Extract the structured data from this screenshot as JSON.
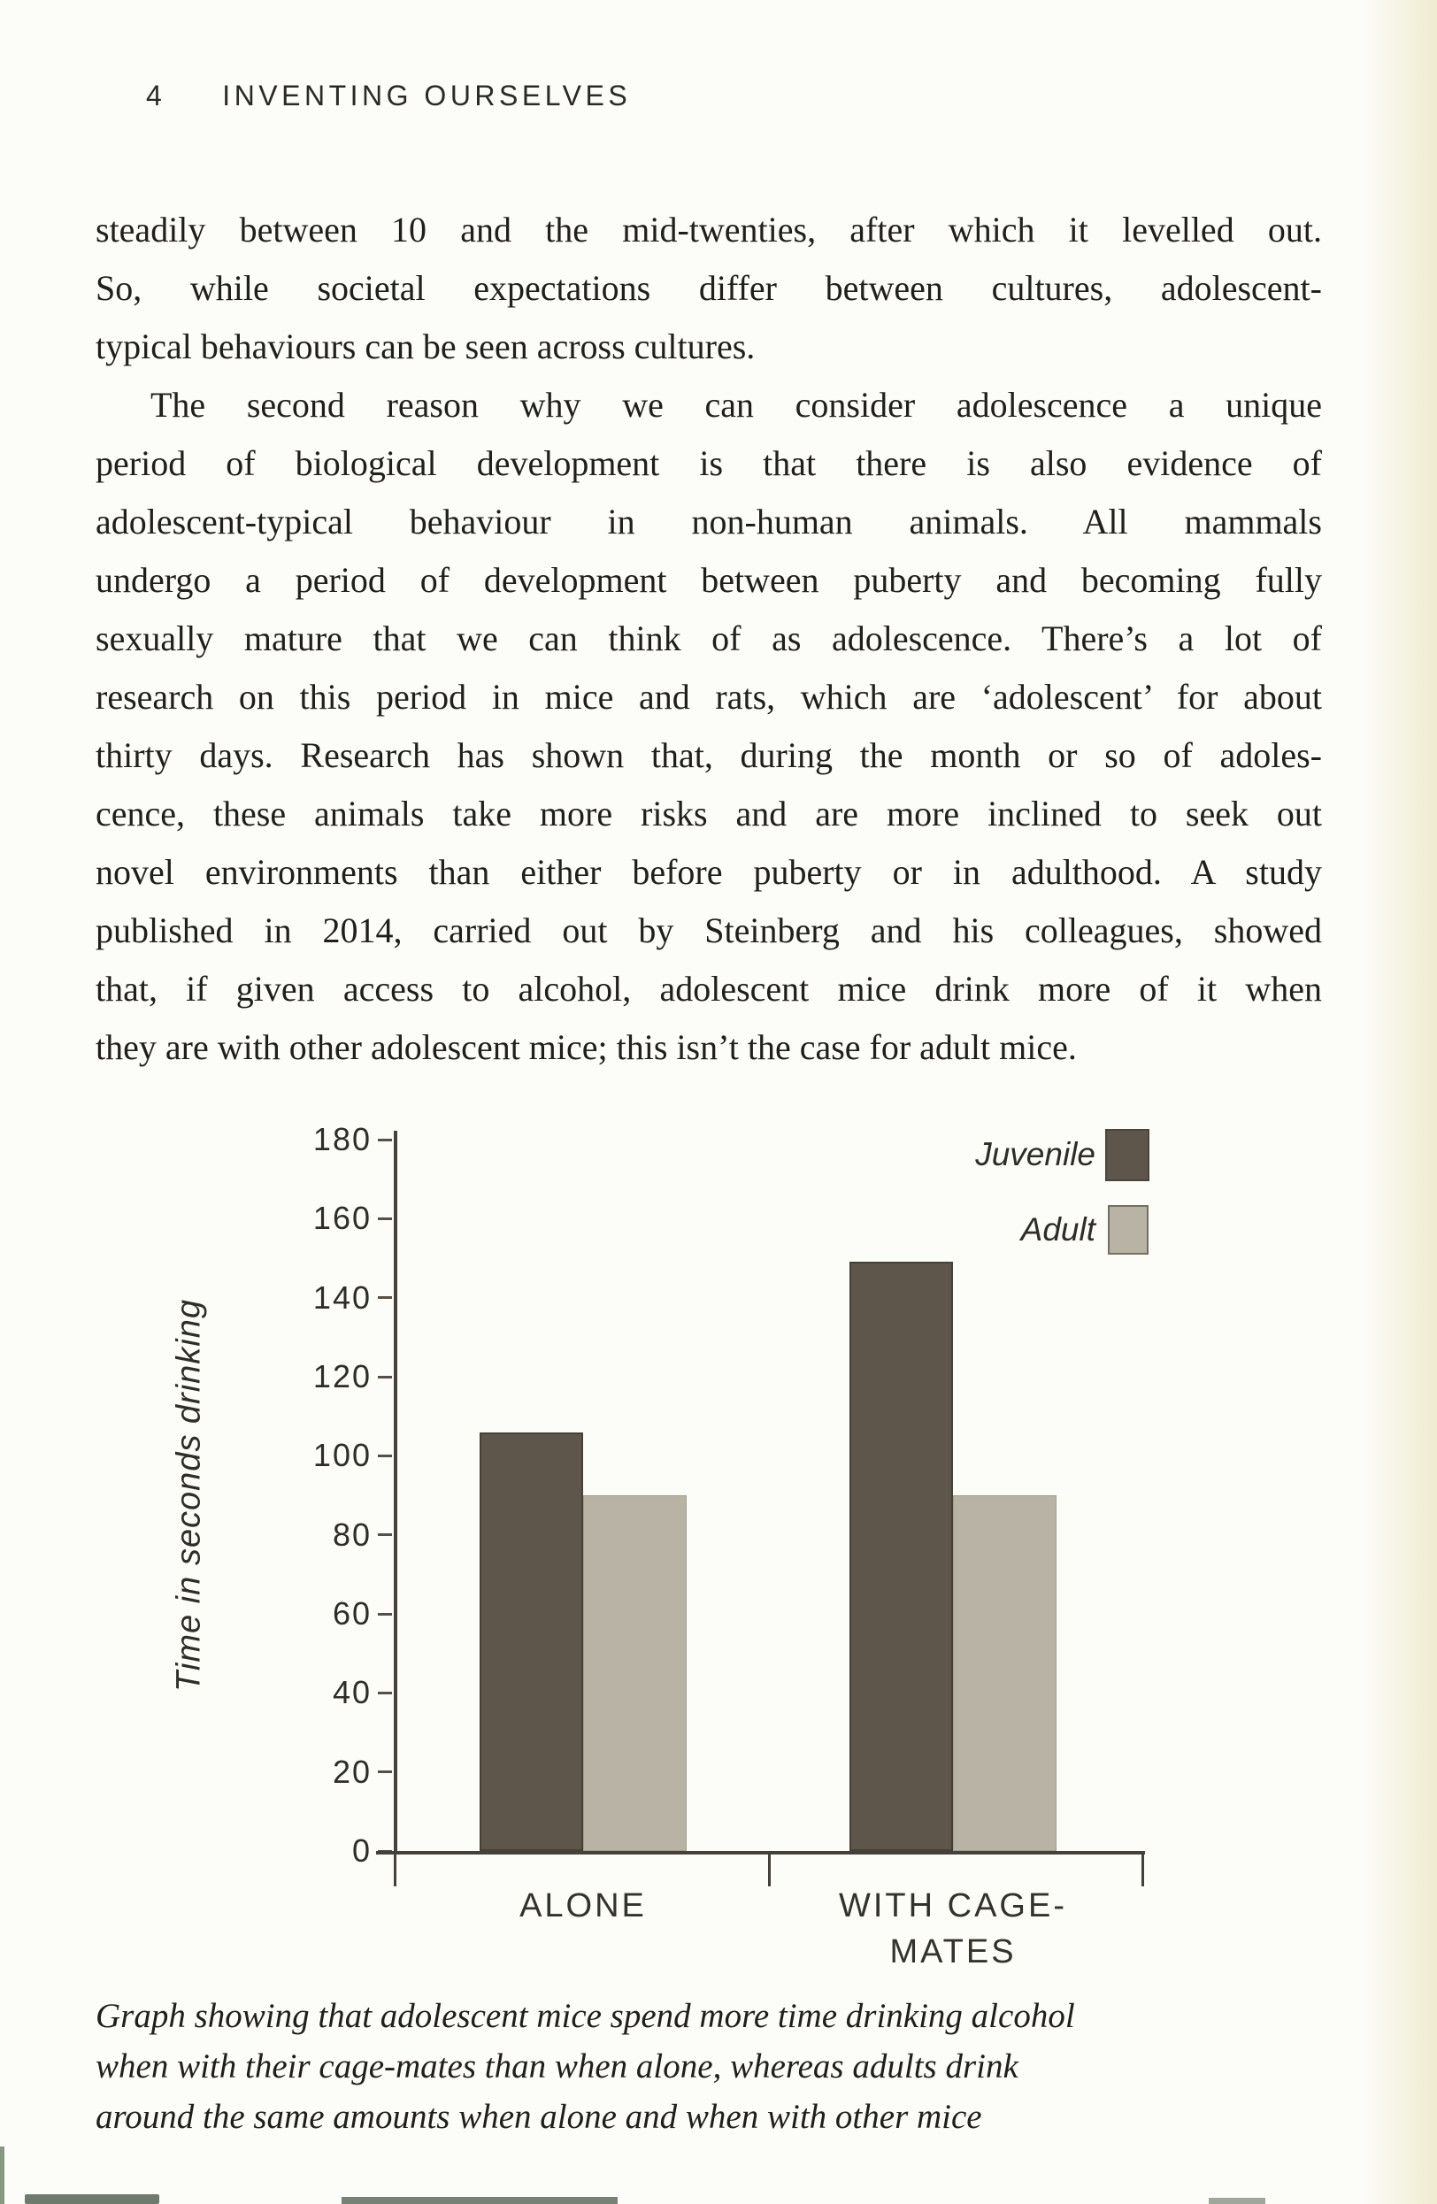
{
  "header": {
    "page_number": "4",
    "running_head": "INVENTING OURSELVES"
  },
  "body": {
    "paragraphs": [
      {
        "indent": false,
        "lines": [
          "steadily between 10 and the mid-twenties, after which it levelled out.",
          "So, while societal expectations differ between cultures, adolescent-",
          "typical behaviours can be seen across cultures."
        ]
      },
      {
        "indent": true,
        "lines": [
          "The second reason why we can consider adolescence a unique",
          "period of biological development is that there is also evidence of",
          "adolescent-typical behaviour in non-human animals. All mammals",
          "undergo a period of development between puberty and becoming fully",
          "sexually mature that we can think of as adolescence. There’s a lot of",
          "research on this period in mice and rats, which are ‘adolescent’ for about",
          "thirty days. Research has shown that, during the month or so of adoles-",
          "cence, these animals take more risks and are more inclined to seek out",
          "novel environments than either before puberty or in adulthood. A study",
          "published in 2014, carried out by Steinberg and his colleagues, showed",
          "that, if given access to alcohol, adolescent mice drink more of it when",
          "they are with other adolescent mice; this isn’t the case for adult mice."
        ]
      }
    ]
  },
  "chart_data": {
    "type": "bar",
    "title": "",
    "categories": [
      "ALONE",
      "WITH CAGE-MATES"
    ],
    "series": [
      {
        "name": "Juvenile",
        "values": [
          106,
          149
        ],
        "color": "#5e564a"
      },
      {
        "name": "Adult",
        "values": [
          90,
          90
        ],
        "color": "#b9b3a5"
      }
    ],
    "xlabel": "",
    "ylabel": "Time in seconds drinking",
    "ylim": [
      0,
      180
    ],
    "ytick_interval": 20,
    "grid": false,
    "legend_position": "top-right",
    "axis_color": "#45413a"
  },
  "caption": {
    "lines": [
      "Graph showing that adolescent mice spend more time drinking alcohol",
      "when with their cage-mates than when alone, whereas adults drink",
      "around the same amounts when alone and when with other mice"
    ]
  }
}
